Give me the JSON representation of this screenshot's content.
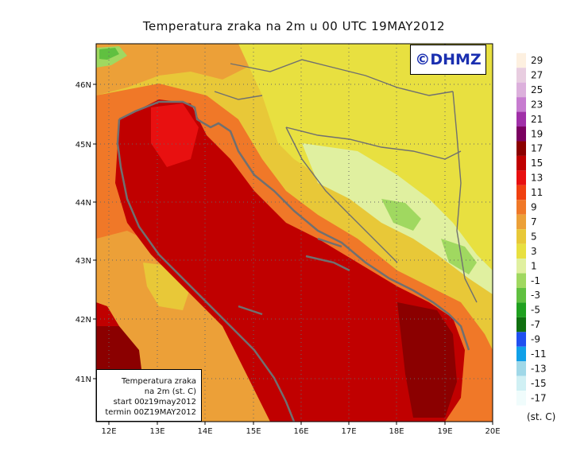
{
  "title": "Temperatura zraka na 2m u 00 UTC 19MAY2012",
  "logo": "©DHMZ",
  "info": {
    "line1": "Temperatura zraka",
    "line2": "na 2m (st. C)",
    "line3": "start 00z19may2012",
    "line4": "termin 00Z19MAY2012"
  },
  "axes": {
    "x_ticks": [
      "12E",
      "13E",
      "14E",
      "15E",
      "16E",
      "17E",
      "18E",
      "19E",
      "20E"
    ],
    "y_ticks": [
      "46N",
      "45N",
      "44N",
      "43N",
      "42N",
      "41N"
    ]
  },
  "legend": {
    "unit": "(st. C)",
    "items": [
      {
        "label": "29",
        "color": "#fdf0e0"
      },
      {
        "label": "27",
        "color": "#e8cde0"
      },
      {
        "label": "25",
        "color": "#dcb0dc"
      },
      {
        "label": "23",
        "color": "#c77cd0"
      },
      {
        "label": "21",
        "color": "#a030a8"
      },
      {
        "label": "19",
        "color": "#7a0060"
      },
      {
        "label": "17",
        "color": "#8b0000"
      },
      {
        "label": "15",
        "color": "#c00000"
      },
      {
        "label": "13",
        "color": "#e81010"
      },
      {
        "label": "11",
        "color": "#f04010"
      },
      {
        "label": "9",
        "color": "#f07828"
      },
      {
        "label": "7",
        "color": "#eca038"
      },
      {
        "label": "5",
        "color": "#e8c838"
      },
      {
        "label": "3",
        "color": "#e8e040"
      },
      {
        "label": "1",
        "color": "#e0f0a0"
      },
      {
        "label": "-1",
        "color": "#a0d860"
      },
      {
        "label": "-3",
        "color": "#60c040"
      },
      {
        "label": "-5",
        "color": "#20a020"
      },
      {
        "label": "-7",
        "color": "#107010"
      },
      {
        "label": "-9",
        "color": "#2050f0"
      },
      {
        "label": "-11",
        "color": "#10a0e8"
      },
      {
        "label": "-13",
        "color": "#a0d8e8"
      },
      {
        "label": "-15",
        "color": "#d0f0f4"
      },
      {
        "label": "-17",
        "color": "#f0fcfc"
      }
    ]
  }
}
